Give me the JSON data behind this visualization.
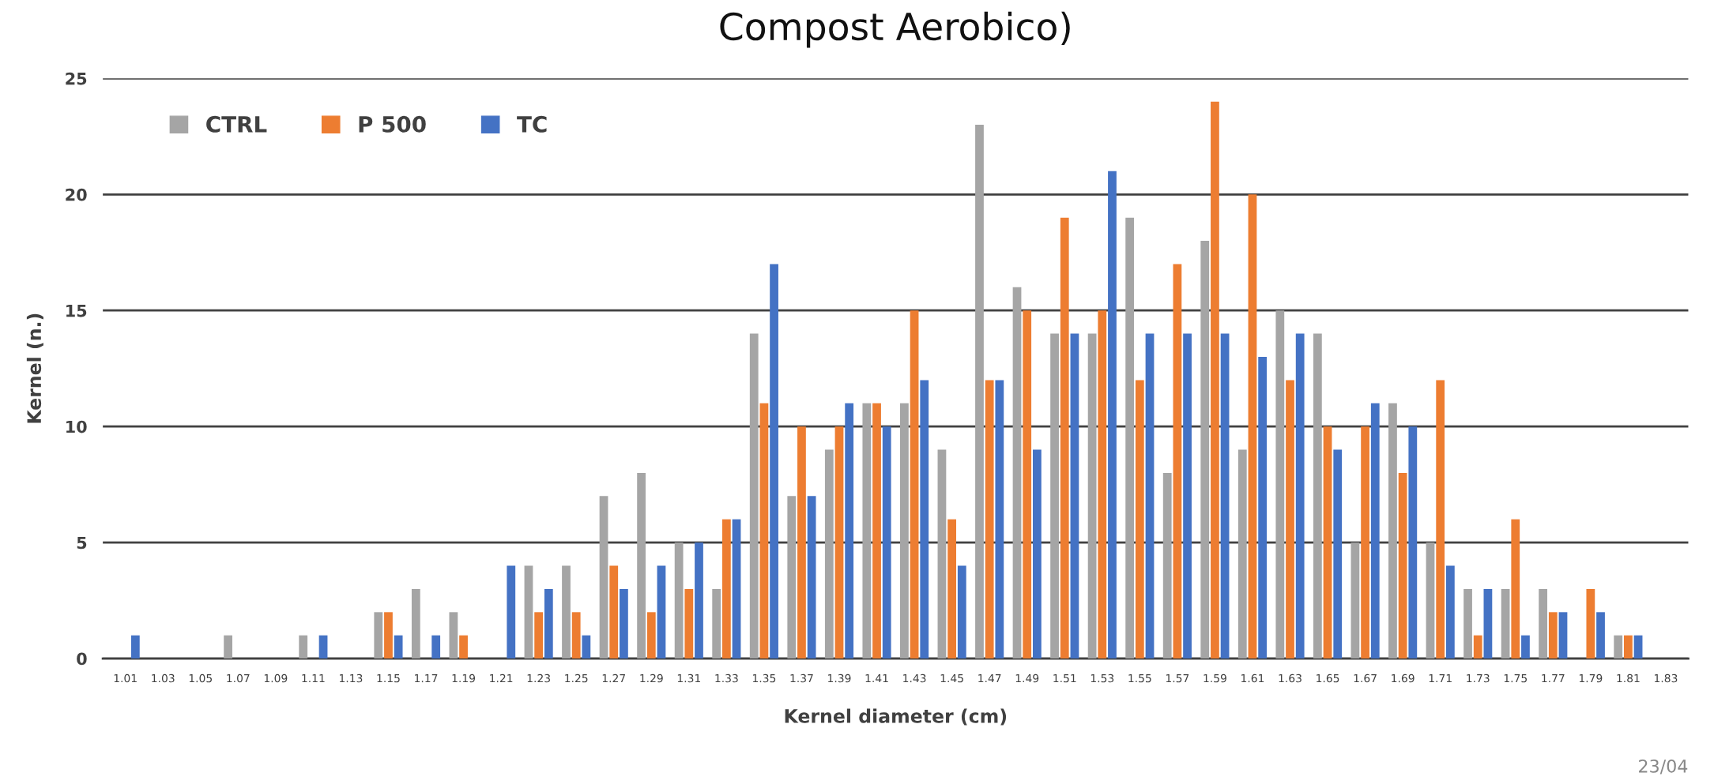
{
  "chart_data": {
    "type": "bar",
    "title": "Compost Aerobico)",
    "xlabel": "Kernel diameter (cm)",
    "ylabel": "Kernel (n.)",
    "categories": [
      "1.01",
      "1.03",
      "1.05",
      "1.07",
      "1.09",
      "1.11",
      "1.13",
      "1.15",
      "1.17",
      "1.19",
      "1.21",
      "1.23",
      "1.25",
      "1.27",
      "1.29",
      "1.31",
      "1.33",
      "1.35",
      "1.37",
      "1.39",
      "1.41",
      "1.43",
      "1.45",
      "1.47",
      "1.49",
      "1.51",
      "1.53",
      "1.55",
      "1.57",
      "1.59",
      "1.61",
      "1.63",
      "1.65",
      "1.67",
      "1.69",
      "1.71",
      "1.73",
      "1.75",
      "1.77",
      "1.79",
      "1.81",
      "1.83"
    ],
    "series": [
      {
        "name": "CTRL",
        "color": "#a5a5a5",
        "values": [
          0,
          0,
          0,
          1,
          0,
          1,
          0,
          2,
          3,
          2,
          0,
          4,
          4,
          7,
          8,
          5,
          3,
          14,
          7,
          9,
          11,
          11,
          9,
          23,
          16,
          14,
          14,
          19,
          8,
          18,
          9,
          15,
          14,
          5,
          11,
          5,
          3,
          3,
          3,
          0,
          1,
          0
        ]
      },
      {
        "name": "P 500",
        "color": "#ed7d31",
        "values": [
          0,
          0,
          0,
          0,
          0,
          0,
          0,
          2,
          0,
          1,
          0,
          2,
          2,
          4,
          2,
          3,
          6,
          11,
          10,
          10,
          11,
          15,
          6,
          12,
          15,
          19,
          15,
          12,
          17,
          24,
          20,
          12,
          10,
          10,
          8,
          12,
          1,
          6,
          2,
          3,
          1,
          0
        ]
      },
      {
        "name": "TC",
        "color": "#4472c4",
        "values": [
          1,
          0,
          0,
          0,
          0,
          1,
          0,
          1,
          1,
          0,
          4,
          3,
          1,
          3,
          4,
          5,
          6,
          17,
          7,
          11,
          10,
          12,
          4,
          12,
          9,
          14,
          21,
          14,
          14,
          14,
          13,
          14,
          9,
          11,
          10,
          4,
          3,
          1,
          2,
          2,
          1,
          0
        ]
      }
    ],
    "ylim": [
      0,
      25
    ],
    "yticks": [
      0,
      5,
      10,
      15,
      20,
      25
    ],
    "grid": "y",
    "legend": "top left",
    "annotations": [
      "23/04"
    ]
  }
}
